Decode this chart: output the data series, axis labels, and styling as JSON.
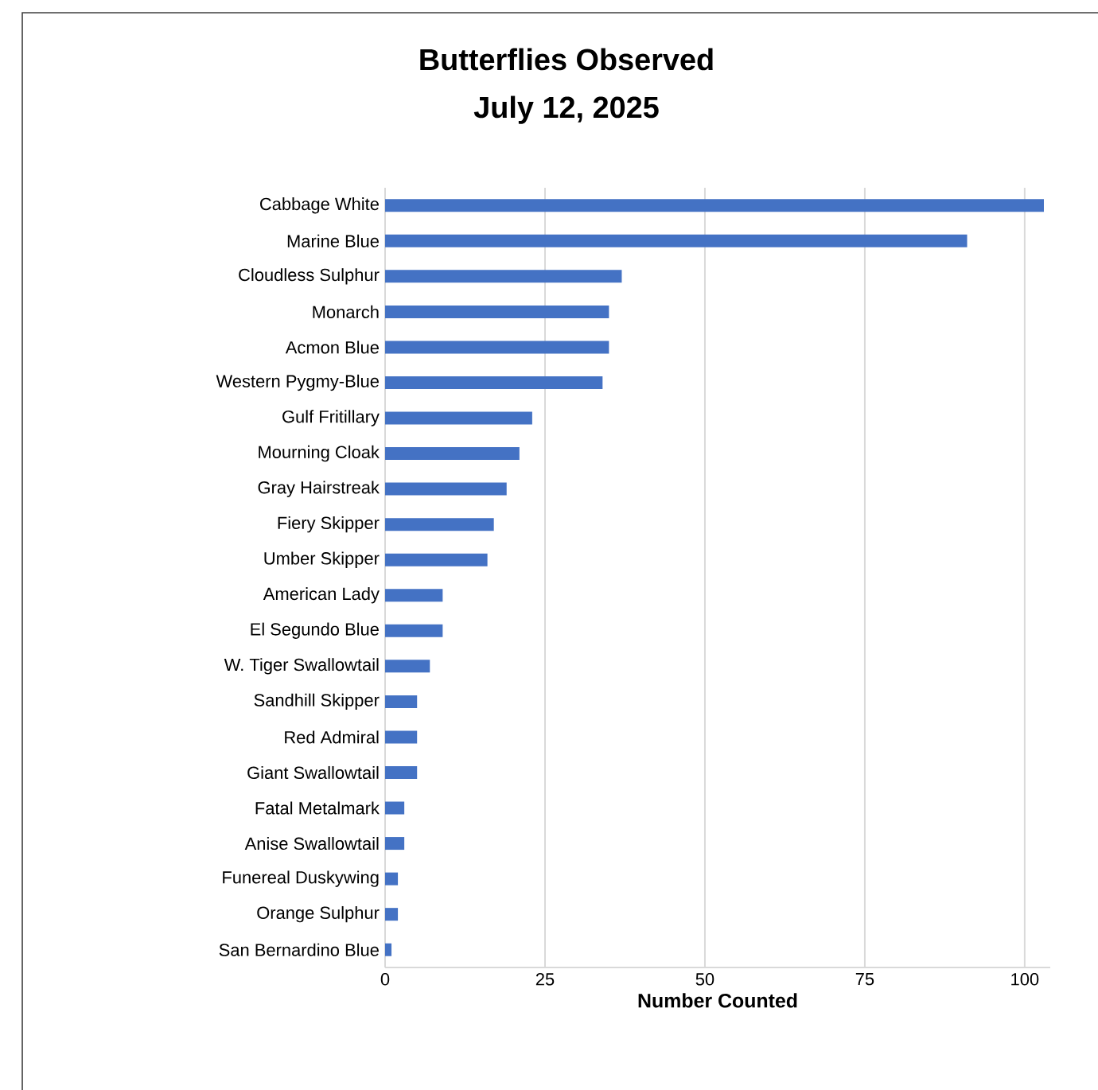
{
  "chart_data": {
    "type": "bar",
    "orientation": "horizontal",
    "title": "Butterflies Observed",
    "subtitle": "July 12, 2025",
    "xlabel": "Number Counted",
    "categories": [
      "Cabbage White",
      "Marine Blue",
      "Cloudless Sulphur",
      "Monarch",
      "Acmon Blue",
      "Western Pygmy-Blue",
      "Gulf Fritillary",
      "Mourning Cloak",
      "Gray Hairstreak",
      "Fiery Skipper",
      "Umber Skipper",
      "American Lady",
      "El Segundo Blue",
      "W. Tiger Swallowtail",
      "Sandhill Skipper",
      "Red Admiral",
      "Giant Swallowtail",
      "Fatal Metalmark",
      "Anise Swallowtail",
      "Funereal Duskywing",
      "Orange Sulphur",
      "San Bernardino Blue"
    ],
    "values": [
      103,
      91,
      37,
      35,
      35,
      34,
      23,
      21,
      19,
      17,
      16,
      9,
      9,
      7,
      5,
      5,
      5,
      3,
      3,
      2,
      2,
      1
    ],
    "color": "#4472c4",
    "xlim": [
      0,
      104
    ],
    "xticks": [
      0,
      25,
      50,
      75,
      100
    ],
    "grid": "x"
  }
}
